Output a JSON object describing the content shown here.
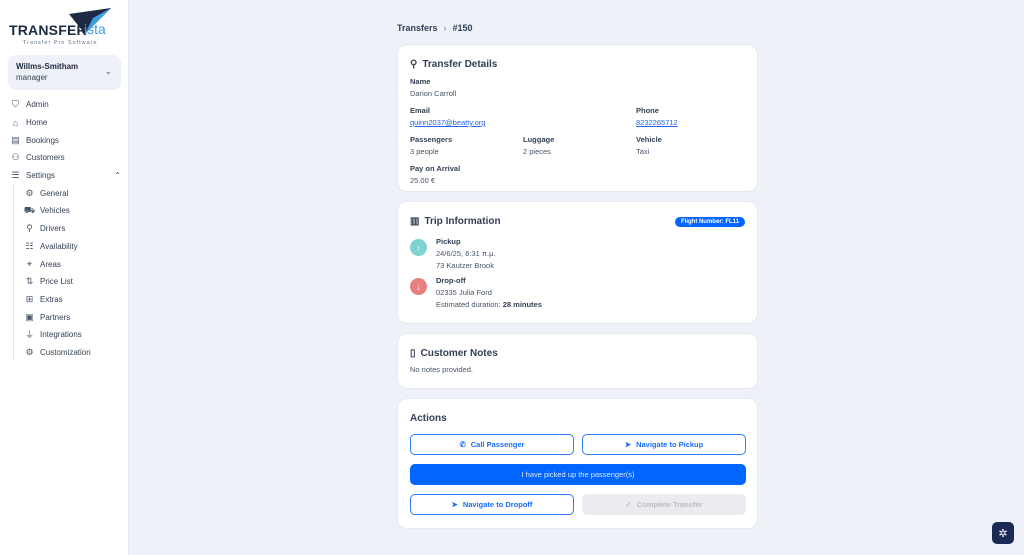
{
  "brand": {
    "name_a": "TRANSFER",
    "name_b": "ista",
    "tagline": "Transfer Pro Software"
  },
  "user": {
    "name": "Willms-Smitham",
    "role": "manager"
  },
  "nav": [
    {
      "label": "Admin",
      "icon": "shield-icon",
      "glyph": "⛉"
    },
    {
      "label": "Home",
      "icon": "home-icon",
      "glyph": "⌂"
    },
    {
      "label": "Bookings",
      "icon": "book-icon",
      "glyph": "▤"
    },
    {
      "label": "Customers",
      "icon": "users-icon",
      "glyph": "⚇"
    },
    {
      "label": "Settings",
      "icon": "sliders-icon",
      "glyph": "☰",
      "expanded": true
    }
  ],
  "settings_items": [
    {
      "label": "General",
      "icon": "gear-icon",
      "glyph": "⚙"
    },
    {
      "label": "Vehicles",
      "icon": "car-icon",
      "glyph": "⛟"
    },
    {
      "label": "Drivers",
      "icon": "user-icon",
      "glyph": "⚲"
    },
    {
      "label": "Availability",
      "icon": "list-check-icon",
      "glyph": "☷"
    },
    {
      "label": "Areas",
      "icon": "map-pin-icon",
      "glyph": "⌖"
    },
    {
      "label": "Price List",
      "icon": "sort-arrows-icon",
      "glyph": "⇅"
    },
    {
      "label": "Extras",
      "icon": "plus-square-icon",
      "glyph": "⊞"
    },
    {
      "label": "Partners",
      "icon": "briefcase-icon",
      "glyph": "▣"
    },
    {
      "label": "Integrations",
      "icon": "plug-icon",
      "glyph": "⏚"
    },
    {
      "label": "Customization",
      "icon": "cog-icon",
      "glyph": "⚙"
    }
  ],
  "breadcrumb": {
    "parent": "Transfers",
    "separator": "›",
    "current": "#150"
  },
  "transfer_details": {
    "title": "Transfer Details",
    "name_label": "Name",
    "name": "Darion Carroll",
    "email_label": "Email",
    "email": "quinn2037@beatty.org",
    "phone_label": "Phone",
    "phone": "8232265712",
    "passengers_label": "Passengers",
    "passengers": "3 people",
    "luggage_label": "Luggage",
    "luggage": "2 pieces",
    "vehicle_label": "Vehicle",
    "vehicle": "Taxi",
    "pay_label": "Pay on Arrival",
    "pay": "25.00 €"
  },
  "trip": {
    "title": "Trip Information",
    "flight_badge": "Flight Number: FL11",
    "pickup_label": "Pickup",
    "pickup_time": "24/6/25, 6:31 π.μ.",
    "pickup_address": "73 Kautzer Brook",
    "dropoff_label": "Drop-off",
    "dropoff_address": "02335 Julia Ford",
    "duration_label": "Estimated duration:",
    "duration": "28 minutes",
    "pickup_color": "#7dd3d0",
    "dropoff_color": "#e88080"
  },
  "notes": {
    "title": "Customer Notes",
    "text": "No notes provided."
  },
  "actions": {
    "title": "Actions",
    "call": "Call Passenger",
    "nav_pickup": "Navigate to Pickup",
    "picked_up": "I have picked up the passenger(s)",
    "nav_dropoff": "Navigate to Dropoff",
    "complete": "Complete Transfer"
  },
  "colors": {
    "primary": "#0066ff",
    "background": "#eef1f8"
  }
}
